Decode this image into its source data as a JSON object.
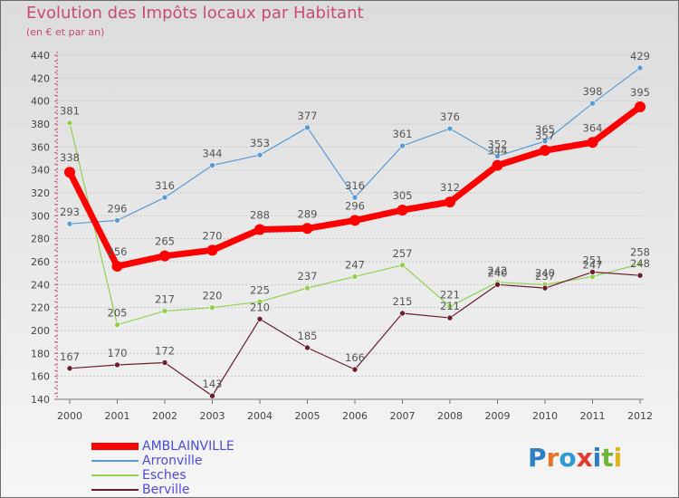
{
  "header": {
    "title": "Evolution des Impôts locaux par Habitant",
    "subtitle": "(en € et par an)"
  },
  "logo": {
    "text": "Proxiti",
    "letters": [
      "P",
      "r",
      "o",
      "x",
      "i",
      "t",
      "i"
    ]
  },
  "chart_data": {
    "type": "line",
    "x": [
      2000,
      2001,
      2002,
      2003,
      2004,
      2005,
      2006,
      2007,
      2008,
      2009,
      2010,
      2011,
      2012
    ],
    "ylim": [
      140,
      440
    ],
    "yticks": [
      140,
      160,
      180,
      200,
      220,
      240,
      260,
      280,
      300,
      320,
      340,
      360,
      380,
      400,
      420,
      440
    ],
    "grid": "horizontal",
    "legend_position": "bottom-left",
    "series": [
      {
        "name": "AMBLAINVILLE",
        "color": "#ff0000",
        "emphasis": true,
        "values": [
          338,
          256,
          265,
          270,
          288,
          289,
          296,
          305,
          312,
          344,
          357,
          364,
          395
        ]
      },
      {
        "name": "Arronville",
        "color": "#5b9bd5",
        "emphasis": false,
        "values": [
          293,
          296,
          316,
          344,
          353,
          377,
          316,
          361,
          376,
          352,
          365,
          398,
          429
        ]
      },
      {
        "name": "Esches",
        "color": "#92d050",
        "emphasis": false,
        "values": [
          381,
          205,
          217,
          220,
          225,
          237,
          247,
          257,
          221,
          242,
          240,
          247,
          258
        ]
      },
      {
        "name": "Berville",
        "color": "#6b1e2a",
        "emphasis": false,
        "values": [
          167,
          170,
          172,
          143,
          210,
          185,
          166,
          215,
          211,
          240,
          237,
          251,
          248
        ]
      }
    ]
  }
}
